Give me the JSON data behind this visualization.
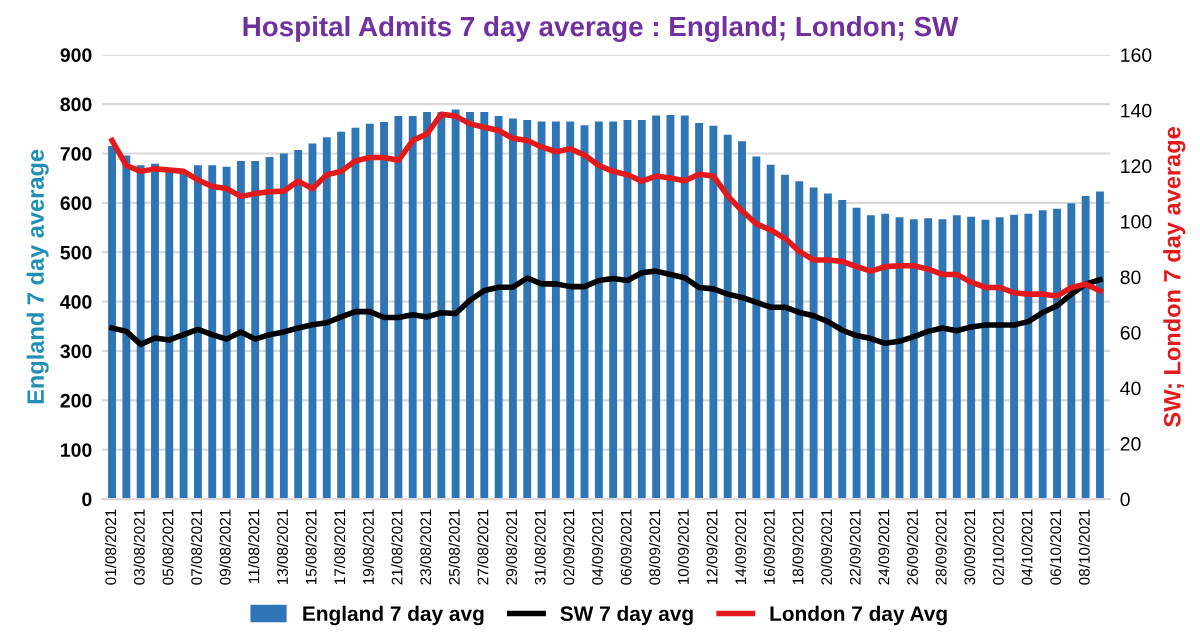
{
  "chart_data": {
    "type": "bar",
    "title": "Hospital Admits 7 day average : England; London; SW",
    "ylabel": "England 7 day average",
    "y2label": "SW; London 7 day average",
    "categories": [
      "01/08/2021",
      null,
      "03/08/2021",
      null,
      "05/08/2021",
      null,
      "07/08/2021",
      null,
      "09/08/2021",
      null,
      "11/08/2021",
      null,
      "13/08/2021",
      null,
      "15/08/2021",
      null,
      "17/08/2021",
      null,
      "19/08/2021",
      null,
      "21/08/2021",
      null,
      "23/08/2021",
      null,
      "25/08/2021",
      null,
      "27/08/2021",
      null,
      "29/08/2021",
      null,
      "31/08/2021",
      null,
      "02/09/2021",
      null,
      "04/09/2021",
      null,
      "06/09/2021",
      null,
      "08/09/2021",
      null,
      "10/09/2021",
      null,
      "12/09/2021",
      null,
      "14/09/2021",
      null,
      "16/09/2021",
      null,
      "18/09/2021",
      null,
      "20/09/2021",
      null,
      "22/09/2021",
      null,
      "24/09/2021",
      null,
      "26/09/2021",
      null,
      "28/09/2021",
      null,
      "30/09/2021",
      null,
      "02/10/2021",
      null,
      "04/10/2021",
      null,
      "06/10/2021",
      null,
      "08/10/2021",
      null
    ],
    "series": [
      {
        "name": "England 7 day avg",
        "color": "#2e75b6",
        "values": [
          715,
          696,
          676,
          679,
          664,
          664,
          676,
          676,
          673,
          685,
          685,
          693,
          700,
          707,
          720,
          733,
          744,
          752,
          760,
          764,
          776,
          776,
          784,
          784,
          789,
          784,
          784,
          776,
          771,
          768,
          765,
          765,
          765,
          757,
          765,
          765,
          768,
          768,
          777,
          778,
          777,
          762,
          756,
          738,
          725,
          694,
          677,
          657,
          644,
          631,
          619,
          606,
          590,
          575,
          578,
          571,
          567,
          569,
          567,
          575,
          572,
          566,
          571,
          576,
          578,
          585,
          588,
          599,
          614,
          623
        ]
      },
      {
        "name": "SW 7 day avg",
        "type": "line",
        "axis": "y2",
        "color": "#000000",
        "values": [
          61.6,
          60.4,
          55.7,
          58,
          57.3,
          59.2,
          61.1,
          59.2,
          57.6,
          60.2,
          57.6,
          59.2,
          60.2,
          61.6,
          62.8,
          63.5,
          65.6,
          67.5,
          67.5,
          65.4,
          65.4,
          66.4,
          65.6,
          67.1,
          66.8,
          71.6,
          75.1,
          76.3,
          76.3,
          79.6,
          77.5,
          77.5,
          76.5,
          76.5,
          78.7,
          79.4,
          78.7,
          81.5,
          82.1,
          80.9,
          79.7,
          76.2,
          75.7,
          73.8,
          72.6,
          70.8,
          69.1,
          69.1,
          67.2,
          66,
          63.9,
          60.8,
          58.9,
          57.8,
          56.1,
          56.8,
          58.5,
          60.4,
          61.6,
          60.6,
          62,
          62.7,
          62.7,
          62.7,
          63.9,
          67.2,
          69.6,
          73.8,
          77.4,
          79
        ]
      },
      {
        "name": "London 7 day Avg",
        "type": "line",
        "axis": "y2",
        "color": "#e31a1c",
        "values": [
          129.1,
          120.1,
          118,
          118.9,
          118.5,
          118,
          114.9,
          112.6,
          111.8,
          109,
          110,
          110.7,
          110.9,
          114.5,
          111.8,
          116.8,
          118,
          121.8,
          123,
          123,
          122,
          129.1,
          131.5,
          138.6,
          137.9,
          135.1,
          133.9,
          132.7,
          129.9,
          129.1,
          126.8,
          125.1,
          126.1,
          123.9,
          120.1,
          118,
          116.8,
          114.5,
          116.3,
          115.6,
          114.6,
          117,
          116.3,
          109.2,
          103.8,
          99.1,
          96.9,
          93.9,
          89.2,
          86.1,
          86.1,
          85.6,
          83.7,
          82.1,
          83.7,
          84,
          84,
          82.8,
          80.9,
          80.9,
          78.1,
          76.2,
          76.2,
          74.3,
          73.8,
          73.8,
          73.1,
          76.2,
          77.4,
          75
        ]
      }
    ],
    "ylim": [
      0,
      900
    ],
    "yticks": [
      0,
      100,
      200,
      300,
      400,
      500,
      600,
      700,
      800,
      900
    ],
    "y2lim": [
      0,
      160
    ],
    "y2ticks": [
      0,
      20,
      40,
      60,
      80,
      100,
      120,
      140,
      160
    ],
    "grid": "y",
    "legend": "bottom"
  }
}
